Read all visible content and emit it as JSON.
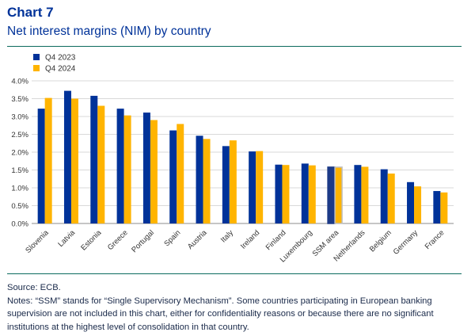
{
  "header": {
    "chart_label": "Chart 7",
    "title": "Net interest margins (NIM) by country"
  },
  "footer": {
    "source": "Source: ECB.",
    "notes": "Notes: “SSM” stands for “Single Supervisory Mechanism”. Some countries participating in European banking supervision are not included in this chart, either for confidentiality reasons or because there are no significant institutions at the highest level of consolidation in that country."
  },
  "chart_data": {
    "type": "bar",
    "categories": [
      "Slovenia",
      "Latvia",
      "Estonia",
      "Greece",
      "Portugal",
      "Spain",
      "Austria",
      "Italy",
      "Ireland",
      "Finland",
      "Luxembourg",
      "SSM area",
      "Netherlands",
      "Belgium",
      "Germany",
      "France"
    ],
    "series": [
      {
        "name": "Q4 2023",
        "color": "#003299",
        "values": [
          3.22,
          3.72,
          3.58,
          3.22,
          3.11,
          2.61,
          2.46,
          2.17,
          2.02,
          1.65,
          1.68,
          1.58,
          1.64,
          1.52,
          1.16,
          0.91
        ]
      },
      {
        "name": "Q4 2024",
        "color": "#FFB400",
        "values": [
          3.52,
          3.5,
          3.3,
          3.03,
          2.9,
          2.79,
          2.37,
          2.33,
          2.03,
          1.64,
          1.63,
          1.58,
          1.59,
          1.4,
          1.04,
          0.87
        ]
      }
    ],
    "highlight_category": "SSM area",
    "highlight_colors": [
      "#1c3a87",
      "#bfbfbf"
    ],
    "yticks": [
      "0.0%",
      "0.5%",
      "1.0%",
      "1.5%",
      "2.0%",
      "2.5%",
      "3.0%",
      "3.5%",
      "4.0%"
    ],
    "ylim": [
      0,
      4.0
    ],
    "grid": true,
    "legend_position": "top-left"
  }
}
